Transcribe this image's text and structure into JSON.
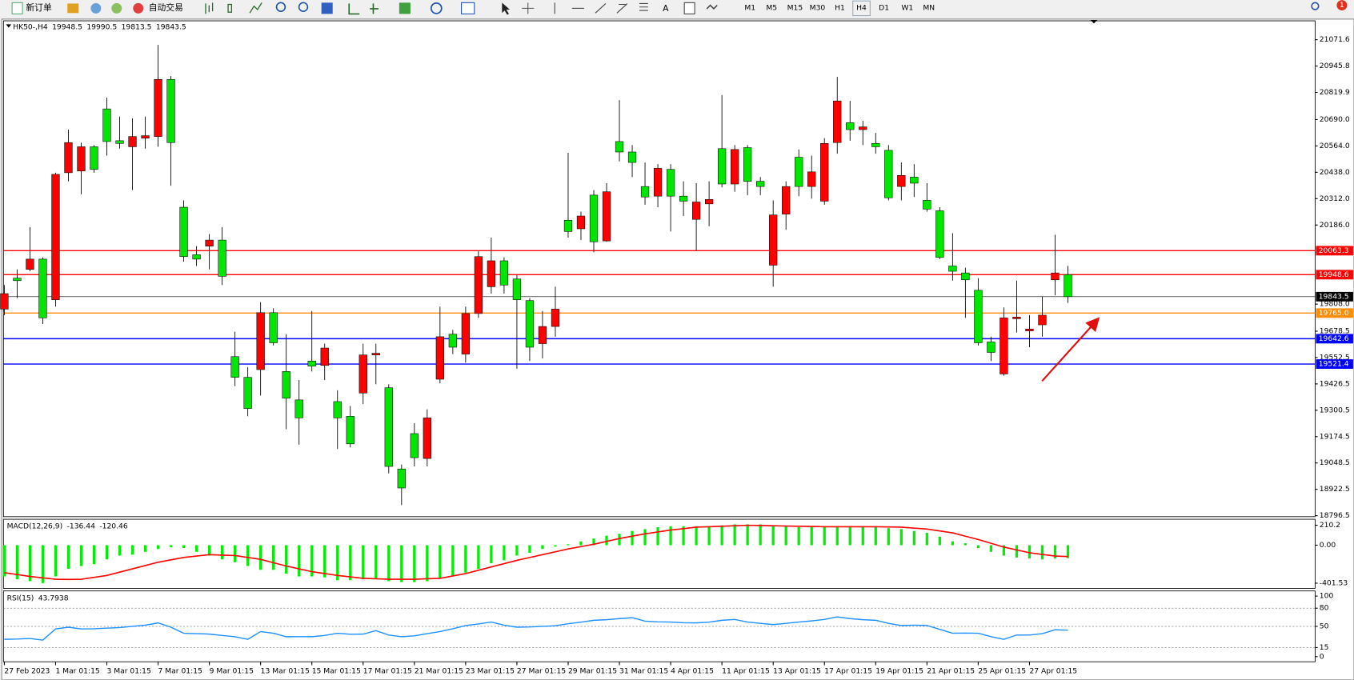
{
  "toolbar": {
    "new_order": "新订单",
    "auto_trading": "自动交易",
    "timeframes": [
      "M1",
      "M5",
      "M15",
      "M30",
      "H1",
      "H4",
      "D1",
      "W1",
      "MN"
    ],
    "badge": "1"
  },
  "chart_data": [
    {
      "type": "candlestick",
      "title": "HK50-,H4",
      "categories": [
        "27 Feb 2023",
        null,
        null,
        null,
        "1 Mar 01:15",
        null,
        null,
        null,
        "3 Mar 01:15",
        null,
        null,
        null,
        "7 Mar 01:15",
        null,
        null,
        null,
        "9 Mar 01:15",
        null,
        null,
        null,
        "13 Mar 01:15",
        null,
        null,
        null,
        "15 Mar 01:15",
        null,
        null,
        null,
        "17 Mar 01:15",
        null,
        null,
        null,
        "21 Mar 01:15",
        null,
        null,
        null,
        "23 Mar 01:15",
        null,
        null,
        null,
        "27 Mar 01:15",
        null,
        null,
        null,
        "29 Mar 01:15",
        null,
        null,
        null,
        "31 Mar 01:15",
        null,
        null,
        null,
        "4 Apr 01:15",
        null,
        null,
        null,
        "11 Apr 01:15",
        null,
        null,
        null,
        "13 Apr 01:15",
        null,
        null,
        null,
        "17 Apr 01:15",
        null,
        null,
        null,
        "19 Apr 01:15",
        null,
        null,
        null,
        "21 Apr 01:15",
        null,
        null,
        null,
        "25 Apr 01:15",
        null,
        null,
        null,
        "27 Apr 01:15",
        null,
        null,
        null
      ],
      "open": [
        19784,
        19932,
        19974,
        20023,
        19829,
        20436,
        20444,
        20560,
        20741,
        20589,
        20560,
        20601,
        20609,
        20882,
        20271,
        20044,
        20085,
        20114,
        19557,
        19458,
        19495,
        19767,
        19486,
        19350,
        19536,
        19515,
        19342,
        19272,
        19383,
        19565,
        19408,
        19020,
        19189,
        19070,
        19449,
        19664,
        19569,
        19763,
        19891,
        20015,
        19928,
        19825,
        19619,
        19701,
        20209,
        20168,
        20329,
        20110,
        20585,
        20535,
        20370,
        20324,
        20452,
        20324,
        20213,
        20287,
        20551,
        20382,
        20556,
        20395,
        19994,
        20238,
        20510,
        20370,
        20300,
        20580,
        20675,
        20642,
        20576,
        20543,
        20370,
        20415,
        20304,
        20254,
        19990,
        19957,
        19874,
        19627,
        19474,
        19738,
        19680,
        19709,
        19924,
        19948.5
      ],
      "high": [
        19899,
        19974,
        20176,
        20031,
        20436,
        20642,
        20580,
        20568,
        20795,
        20704,
        20696,
        20704,
        21047,
        20898,
        20304,
        20085,
        20143,
        20176,
        19676,
        19507,
        19817,
        19788,
        19664,
        19445,
        19775,
        19619,
        19396,
        19321,
        19619,
        19619,
        19425,
        19041,
        19239,
        19305,
        19796,
        19685,
        19796,
        20064,
        20126,
        20031,
        19949,
        19837,
        19775,
        19891,
        20531,
        20250,
        20353,
        20386,
        20783,
        20568,
        20485,
        20477,
        20477,
        20395,
        20386,
        20395,
        20807,
        20568,
        20568,
        20415,
        20304,
        20395,
        20547,
        20518,
        20601,
        20894,
        20779,
        20684,
        20626,
        20568,
        20485,
        20477,
        20386,
        20271,
        20147,
        19982,
        19932,
        19652,
        19792,
        19920,
        19755,
        19845,
        20139,
        19990.5
      ],
      "low": [
        19755,
        19837,
        19965,
        19713,
        19796,
        20395,
        20333,
        20436,
        20518,
        20551,
        20353,
        20551,
        20560,
        20374,
        20011,
        19990,
        19974,
        19899,
        19416,
        19272,
        19371,
        19610,
        19210,
        19136,
        19486,
        19445,
        19115,
        19123,
        19330,
        19425,
        18999,
        18847,
        19032,
        19032,
        19429,
        19569,
        19528,
        19742,
        19858,
        19858,
        19499,
        19536,
        19548,
        19652,
        20126,
        20114,
        20056,
        20106,
        20490,
        20415,
        20283,
        20271,
        20155,
        20229,
        20064,
        20180,
        20366,
        20345,
        20329,
        20329,
        19891,
        20163,
        20324,
        20312,
        20283,
        20527,
        20589,
        20568,
        20527,
        20304,
        20304,
        20320,
        20250,
        20023,
        19920,
        19742,
        19610,
        19536,
        19466,
        19672,
        19602,
        19652,
        19850,
        19813.5
      ],
      "close": [
        19858,
        19920,
        20023,
        19742,
        20428,
        20580,
        20560,
        20452,
        20585,
        20576,
        20609,
        20613,
        20882,
        20580,
        20035,
        20023,
        20114,
        19941,
        19458,
        19309,
        19767,
        19623,
        19358,
        19264,
        19511,
        19598,
        19264,
        19140,
        19565,
        19573,
        19032,
        18929,
        19074,
        19264,
        19652,
        19602,
        19763,
        20035,
        20015,
        19899,
        19829,
        19602,
        19701,
        19784,
        20155,
        20229,
        20106,
        20345,
        20535,
        20485,
        20320,
        20457,
        20324,
        20300,
        20296,
        20308,
        20382,
        20547,
        20395,
        20370,
        20234,
        20370,
        20370,
        20440,
        20576,
        20779,
        20642,
        20655,
        20560,
        20316,
        20423,
        20386,
        20262,
        20031,
        19965,
        19924,
        19623,
        19577,
        19742,
        19746,
        19689,
        19755,
        19957,
        19843.5
      ],
      "up_color": "#ff0000",
      "down_color": "#00e600",
      "wick_color": "#000000",
      "last_color": "#000000",
      "ylim": [
        18792,
        21162
      ],
      "yticks": [
        21071.6,
        20945.8,
        20819.9,
        {
          "value": 20690,
          "label": "20690.0"
        },
        {
          "value": 20564,
          "label": "20564.0"
        },
        {
          "value": 20438,
          "label": "20438.0"
        },
        {
          "value": 20312,
          "label": "20312.0"
        },
        {
          "value": 20186,
          "label": "20186.0"
        },
        {
          "value": 19808,
          "label": "19808.0"
        },
        19678.5,
        19552.5,
        19426.5,
        19300.5,
        19174.5,
        19048.5,
        18922.5,
        18796.5
      ],
      "hlines": [
        {
          "value": 20063.3,
          "color": "#ff0000"
        },
        {
          "value": 19948.6,
          "color": "#ff0000"
        },
        {
          "value": 19765,
          "label": "19765.0",
          "color": "#ff8c00"
        },
        {
          "value": 19642.6,
          "color": "#0000ff"
        },
        {
          "value": 19521.4,
          "color": "#0000ff"
        }
      ]
    },
    {
      "type": "macd",
      "title": "MACD(12,26,9)",
      "histogram": {
        "color": "#00ee00",
        "values": [
          -330,
          -360,
          -380,
          -400,
          -330,
          -250,
          -220,
          -200,
          -150,
          -110,
          -100,
          -70,
          -40,
          -20,
          -30,
          -70,
          -110,
          -150,
          -180,
          -220,
          -260,
          -260,
          -300,
          -330,
          -330,
          -340,
          -370,
          -370,
          -360,
          -360,
          -380,
          -390,
          -390,
          -380,
          -350,
          -330,
          -290,
          -250,
          -190,
          -160,
          -110,
          -80,
          -40,
          -15,
          10,
          40,
          70,
          100,
          120,
          150,
          170,
          190,
          200,
          200,
          200,
          200,
          210,
          220,
          220,
          220,
          200,
          200,
          190,
          200,
          200,
          200,
          200,
          200,
          200,
          180,
          170,
          150,
          130,
          90,
          40,
          20,
          -30,
          -70,
          -110,
          -130,
          -140,
          -150,
          -140,
          -136.44
        ]
      },
      "signal": {
        "color": "#ff0000",
        "values": [
          -290,
          -310,
          -330,
          -345,
          -360,
          -362,
          -360,
          -340,
          -320,
          -285,
          -250,
          -215,
          -180,
          -155,
          -130,
          -115,
          -100,
          -105,
          -110,
          -130,
          -150,
          -185,
          -220,
          -250,
          -280,
          -300,
          -320,
          -335,
          -350,
          -355,
          -360,
          -360,
          -360,
          -355,
          -350,
          -325,
          -300,
          -265,
          -230,
          -195,
          -160,
          -130,
          -100,
          -70,
          -40,
          -15,
          10,
          40,
          70,
          95,
          120,
          140,
          160,
          175,
          190,
          195,
          200,
          205,
          210,
          208,
          205,
          202,
          200,
          198,
          195,
          195,
          195,
          195,
          195,
          193,
          190,
          180,
          170,
          150,
          130,
          95,
          60,
          20,
          -20,
          -50,
          -80,
          -98,
          -115,
          -120.46
        ]
      },
      "ylim": [
        -456,
        274
      ],
      "yticks": [
        210.2,
        {
          "value": 0,
          "label": "0.00"
        },
        -401.53
      ]
    },
    {
      "type": "line",
      "title": "RSI(15)",
      "color": "#1e90ff",
      "values": [
        28.6,
        29,
        30,
        27.2,
        45.7,
        48.6,
        45.7,
        46,
        47.1,
        48,
        50,
        52,
        55.7,
        48.6,
        38.6,
        38,
        37.2,
        35,
        32.9,
        28.6,
        41.4,
        38.6,
        32.9,
        33,
        32.9,
        35,
        38.6,
        37,
        37.2,
        42.9,
        35.7,
        32.9,
        34.3,
        38,
        41.4,
        46,
        51.4,
        54,
        57.1,
        52,
        48.6,
        49,
        50,
        51,
        54.3,
        57,
        60,
        61,
        62.8,
        64.3,
        58.6,
        57.5,
        57.1,
        56,
        55.7,
        57,
        60,
        61.4,
        57.1,
        55,
        52.9,
        55,
        57.1,
        59,
        61.4,
        65.7,
        62.8,
        61,
        60,
        55,
        51.4,
        52,
        51.4,
        45,
        38.6,
        39,
        38.6,
        33,
        28.6,
        35.7,
        35.7,
        38,
        44.3,
        43.7938
      ],
      "ylim": [
        -8.5,
        108.5
      ],
      "yticks": [
        100,
        80,
        50,
        15,
        0
      ],
      "levels": [
        80,
        50,
        15
      ]
    }
  ]
}
